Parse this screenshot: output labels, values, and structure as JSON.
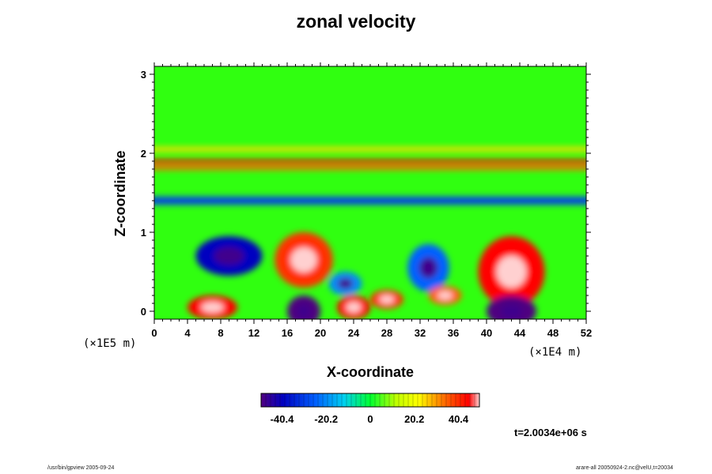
{
  "chart_data": {
    "type": "heatmap",
    "title": "zonal velocity",
    "xlabel": "X-coordinate",
    "ylabel": "Z-coordinate",
    "xlim": [
      0,
      52
    ],
    "ylim": [
      -0.1,
      3.1
    ],
    "x_ticks": [
      "0",
      "4",
      "8",
      "12",
      "16",
      "20",
      "24",
      "28",
      "32",
      "36",
      "40",
      "44",
      "48",
      "52"
    ],
    "y_ticks": [
      "0",
      "1",
      "2",
      "3"
    ],
    "x_unit_label": "(×1E4 m)",
    "y_unit_label": "(×1E5 m)",
    "colorbar": {
      "range": [
        -50,
        50
      ],
      "tick_labels": [
        "-40.4",
        "-20.2",
        "0",
        "20.2",
        "40.4"
      ],
      "tick_values": [
        -40.4,
        -20.2,
        0,
        20.2,
        40.4
      ]
    },
    "grid": false,
    "features": [
      {
        "kind": "band",
        "z": 1.9,
        "value": 45,
        "thickness": 0.05
      },
      {
        "kind": "band",
        "z": 1.82,
        "value": 35,
        "thickness": 0.06
      },
      {
        "kind": "band",
        "z": 2.05,
        "value": 25,
        "thickness": 0.06
      },
      {
        "kind": "band",
        "z": 1.4,
        "value": -30,
        "thickness": 0.1
      },
      {
        "kind": "blob",
        "x": 9,
        "z": 0.7,
        "rx": 4,
        "rz": 0.25,
        "value": -40
      },
      {
        "kind": "blob",
        "x": 18,
        "z": 0.65,
        "rx": 3.5,
        "rz": 0.35,
        "value": 40
      },
      {
        "kind": "blob",
        "x": 33,
        "z": 0.55,
        "rx": 2.5,
        "rz": 0.3,
        "value": -25
      },
      {
        "kind": "blob",
        "x": 43,
        "z": 0.5,
        "rx": 4,
        "rz": 0.45,
        "value": 45
      },
      {
        "kind": "blob",
        "x": 7,
        "z": 0.05,
        "rx": 3,
        "rz": 0.15,
        "value": 45
      },
      {
        "kind": "blob",
        "x": 18,
        "z": 0.0,
        "rx": 2,
        "rz": 0.2,
        "value": -50
      },
      {
        "kind": "blob",
        "x": 24,
        "z": 0.05,
        "rx": 2,
        "rz": 0.15,
        "value": 45
      },
      {
        "kind": "blob",
        "x": 28,
        "z": 0.15,
        "rx": 2,
        "rz": 0.12,
        "value": 40
      },
      {
        "kind": "blob",
        "x": 35,
        "z": 0.2,
        "rx": 2,
        "rz": 0.12,
        "value": 35
      },
      {
        "kind": "blob",
        "x": 43,
        "z": 0.0,
        "rx": 3,
        "rz": 0.2,
        "value": -50
      },
      {
        "kind": "blob",
        "x": 23,
        "z": 0.35,
        "rx": 2,
        "rz": 0.15,
        "value": -20
      }
    ]
  },
  "time_label": "t=2.0034e+06 s",
  "footer_left": "/usr/bin/gpview 2005-09-24",
  "footer_right": "arare-all 20050924-2.nc@velU,t=20034"
}
